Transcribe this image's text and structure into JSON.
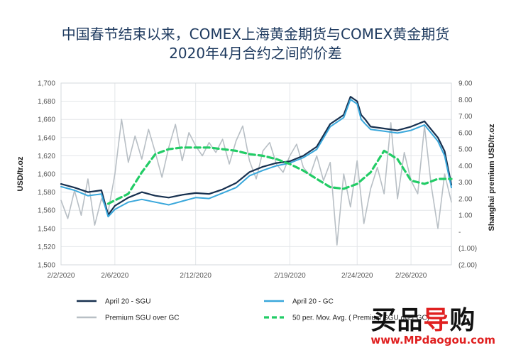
{
  "title_line1": "中国春节结束以来，COMEX上海黄金期货与COMEX黄金期货",
  "title_line2": "2020年4月合约之间的价差",
  "watermark": {
    "top_black": "买品",
    "top_red": "导",
    "top_black2": "购",
    "url": "www.MPdaogou.com"
  },
  "colors": {
    "sgu": "#17304f",
    "gc": "#39a7db",
    "premium": "#b8bfc5",
    "ma": "#22cc66",
    "title": "#1e3a5f"
  },
  "chart_data": {
    "type": "line",
    "x_tick_labels": [
      "2/2/2020",
      "2/6/2020",
      "2/12/2020",
      "2/19/2020",
      "2/24/2020",
      "2/26/2020"
    ],
    "x_tick_positions": [
      0,
      4,
      10,
      17,
      22,
      26
    ],
    "x_range": [
      0,
      29
    ],
    "ylabel": "USD/tr.oz",
    "y2label": "Shanghai premium USD/tr.oz",
    "ylim": [
      1500,
      1700
    ],
    "y_tick_labels": [
      "1,500",
      "1,520",
      "1,540",
      "1,560",
      "1,580",
      "1,600",
      "1,620",
      "1,640",
      "1,660",
      "1,680",
      "1,700"
    ],
    "y_ticks": [
      1500,
      1520,
      1540,
      1560,
      1580,
      1600,
      1620,
      1640,
      1660,
      1680,
      1700
    ],
    "y2lim": [
      -2,
      9
    ],
    "y2_tick_labels": [
      "(2.00)",
      "(1.00)",
      "-",
      "1.00",
      "2.00",
      "3.00",
      "4.00",
      "5.00",
      "6.00",
      "7.00",
      "8.00",
      "9.00"
    ],
    "y2_ticks": [
      -2,
      -1,
      0,
      1,
      2,
      3,
      4,
      5,
      6,
      7,
      8,
      9
    ],
    "grid": true,
    "legend": [
      {
        "name": "April 20 - SGU",
        "style": "line",
        "color": "#17304f"
      },
      {
        "name": "April 20 - GC",
        "style": "line",
        "color": "#39a7db"
      },
      {
        "name": "Premium SGU over GC",
        "style": "line",
        "color": "#b8bfc5"
      },
      {
        "name": "50 per. Mov. Avg. ( Premium SGU over GC)",
        "style": "dashed",
        "color": "#22cc66"
      }
    ],
    "series": [
      {
        "name": "April 20 - SGU",
        "axis": "left",
        "x": [
          0,
          1,
          2,
          3,
          3.5,
          4,
          5,
          6,
          7,
          8,
          9,
          10,
          11,
          12,
          13,
          14,
          15,
          16,
          17,
          18,
          19,
          20,
          21,
          21.5,
          22,
          22.3,
          22.6,
          23,
          24,
          25,
          26,
          27,
          28,
          28.5,
          29
        ],
        "y": [
          1589,
          1585,
          1580,
          1582,
          1555,
          1565,
          1574,
          1580,
          1576,
          1574,
          1577,
          1579,
          1578,
          1583,
          1590,
          1602,
          1608,
          1612,
          1614,
          1620,
          1630,
          1655,
          1665,
          1685,
          1680,
          1665,
          1660,
          1652,
          1650,
          1648,
          1652,
          1658,
          1640,
          1625,
          1588
        ]
      },
      {
        "name": "April 20 - GC",
        "axis": "left",
        "x": [
          0,
          1,
          2,
          3,
          3.5,
          4,
          5,
          6,
          7,
          8,
          9,
          10,
          11,
          12,
          13,
          14,
          15,
          16,
          17,
          18,
          19,
          20,
          21,
          21.5,
          22,
          22.3,
          22.6,
          23,
          24,
          25,
          26,
          27,
          28,
          28.5,
          29
        ],
        "y": [
          1586,
          1582,
          1576,
          1578,
          1553,
          1561,
          1569,
          1572,
          1569,
          1566,
          1570,
          1574,
          1573,
          1579,
          1585,
          1598,
          1604,
          1609,
          1612,
          1618,
          1627,
          1652,
          1662,
          1682,
          1677,
          1660,
          1655,
          1649,
          1647,
          1645,
          1648,
          1654,
          1636,
          1620,
          1585
        ]
      },
      {
        "name": "Premium SGU over GC",
        "axis": "right",
        "x": [
          0,
          0.5,
          1,
          1.5,
          2,
          2.5,
          3,
          3.5,
          4,
          4.5,
          5,
          5.5,
          6,
          6.5,
          7,
          7.5,
          8,
          8.5,
          9,
          9.5,
          10,
          10.5,
          11,
          11.5,
          12,
          12.5,
          13,
          13.5,
          14,
          14.5,
          15,
          15.5,
          16,
          16.5,
          17,
          17.5,
          18,
          18.5,
          19,
          19.5,
          20,
          20.5,
          21,
          21.5,
          22,
          22.5,
          23,
          23.5,
          24,
          24.5,
          25,
          25.5,
          26,
          26.5,
          27,
          27.5,
          28,
          28.5,
          29
        ],
        "y": [
          1.9,
          0.8,
          2.5,
          1.0,
          3.2,
          0.4,
          2.0,
          1.2,
          3.5,
          6.8,
          4.2,
          5.8,
          4.4,
          6.2,
          4.8,
          3.3,
          5.1,
          6.5,
          4.3,
          6.0,
          5.2,
          4.6,
          5.4,
          4.8,
          5.6,
          4.1,
          5.5,
          6.4,
          4.3,
          3.2,
          4.9,
          5.4,
          4.1,
          3.6,
          4.6,
          5.3,
          3.9,
          3.4,
          4.6,
          3.1,
          4.2,
          -0.8,
          3.5,
          1.5,
          4.3,
          0.5,
          2.6,
          3.9,
          2.3,
          6.6,
          2.0,
          4.8,
          3.1,
          2.3,
          6.4,
          2.8,
          0.2,
          3.5,
          1.8
        ]
      },
      {
        "name": "50 per. Mov. Avg. ( Premium SGU over GC)",
        "axis": "right",
        "x": [
          3.5,
          4,
          5,
          6,
          7,
          8,
          9,
          10,
          11,
          12,
          13,
          14,
          15,
          16,
          17,
          18,
          19,
          20,
          21,
          22,
          23,
          24,
          25,
          26,
          27,
          28,
          29
        ],
        "y": [
          1.7,
          1.9,
          2.3,
          3.6,
          4.7,
          5.0,
          5.1,
          5.1,
          5.1,
          5.0,
          4.9,
          4.7,
          4.6,
          4.4,
          4.1,
          3.7,
          3.2,
          2.7,
          2.6,
          2.9,
          3.6,
          4.9,
          4.4,
          3.1,
          2.9,
          3.2,
          3.2
        ]
      }
    ]
  }
}
